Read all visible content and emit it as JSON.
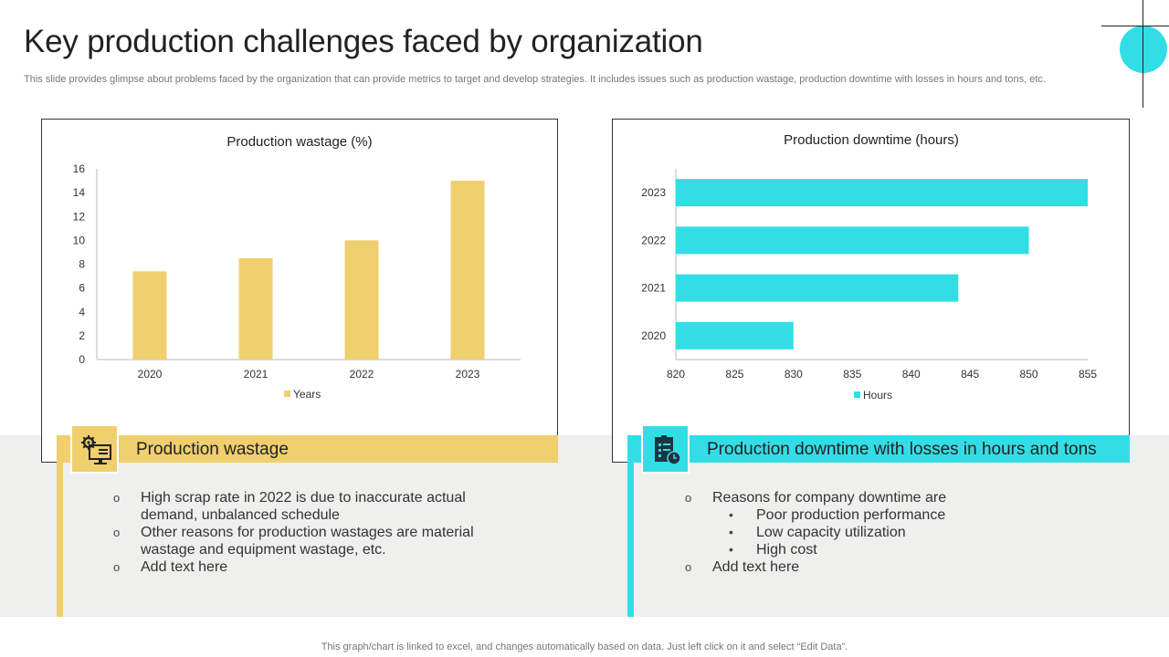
{
  "title": "Key production challenges faced by organization",
  "subtitle": "This slide provides glimpse about problems faced by the organization that can provide metrics to target and develop strategies. It includes issues such as production wastage, production downtime with losses in hours and tons, etc.",
  "colors": {
    "yellow": "#efcf6e",
    "cyan": "#33dde6",
    "band": "#efefee"
  },
  "chart_data": [
    {
      "type": "bar",
      "title": "Production wastage (%)",
      "categories": [
        "2020",
        "2021",
        "2022",
        "2023"
      ],
      "series": [
        {
          "name": "Years",
          "values": [
            7.4,
            8.5,
            10,
            15
          ]
        }
      ],
      "ylim": [
        0,
        16
      ],
      "yticks": [
        "0",
        "2",
        "4",
        "6",
        "8",
        "10",
        "12",
        "14",
        "16"
      ],
      "legend_position": "bottom",
      "grid": false,
      "color": "#efcf6e"
    },
    {
      "type": "bar",
      "orientation": "horizontal",
      "title": "Production downtime (hours)",
      "categories": [
        "2020",
        "2021",
        "2022",
        "2023"
      ],
      "series": [
        {
          "name": "Hours",
          "values": [
            830,
            844,
            850,
            855
          ]
        }
      ],
      "xlim": [
        820,
        855
      ],
      "xticks": [
        "820",
        "825",
        "830",
        "835",
        "840",
        "845",
        "850",
        "855"
      ],
      "legend_position": "bottom",
      "grid": false,
      "color": "#33dde6"
    }
  ],
  "left_section": {
    "heading": "Production wastage",
    "icon": "computer-settings-icon",
    "bullets": [
      "High scrap rate in 2022 is due to inaccurate actual demand, unbalanced schedule",
      "Other reasons for production wastages are material wastage and equipment wastage, etc.",
      "Add text here"
    ]
  },
  "right_section": {
    "heading": "Production downtime with losses in hours and tons",
    "icon": "checklist-clock-icon",
    "intro": "Reasons for company downtime are",
    "sub_bullets": [
      "Poor production performance",
      "Low capacity utilization",
      "High cost"
    ],
    "last": "Add text here"
  },
  "markers": {
    "circle": "o",
    "dot": "•"
  },
  "footer": "This graph/chart is linked to excel,  and changes automatically based on data. Just left click on it and select “Edit Data”."
}
